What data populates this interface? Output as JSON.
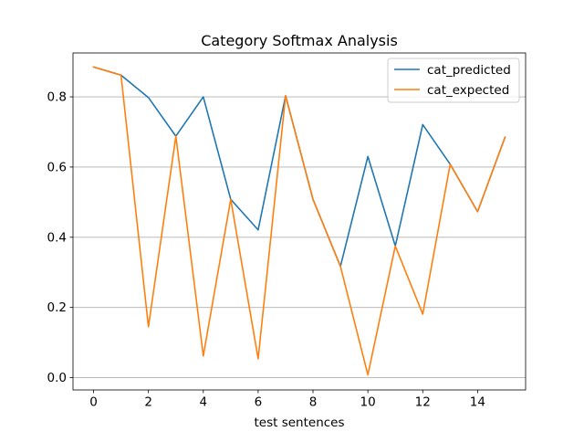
{
  "chart_data": {
    "type": "line",
    "title": "Category Softmax Analysis",
    "xlabel": "test sentences",
    "ylabel": "",
    "xlim": [
      -0.75,
      15.75
    ],
    "ylim": [
      -0.035,
      0.925
    ],
    "xticks": [
      0,
      2,
      4,
      6,
      8,
      10,
      12,
      14
    ],
    "yticks": [
      0.0,
      0.2,
      0.4,
      0.6,
      0.8
    ],
    "xtick_labels": [
      "0",
      "2",
      "4",
      "6",
      "8",
      "10",
      "12",
      "14"
    ],
    "ytick_labels": [
      "0.0",
      "0.2",
      "0.4",
      "0.6",
      "0.8"
    ],
    "grid": "horizontal",
    "legend_position": "top-right",
    "x": [
      0,
      1,
      2,
      3,
      4,
      5,
      6,
      7,
      8,
      9,
      10,
      11,
      12,
      13,
      14,
      15
    ],
    "series": [
      {
        "name": "cat_predicted",
        "color": "#1f77b4",
        "values": [
          0.885,
          0.862,
          0.798,
          0.688,
          0.8,
          0.508,
          0.421,
          0.803,
          0.508,
          0.317,
          0.63,
          0.375,
          0.721,
          0.608,
          0.473,
          0.685
        ]
      },
      {
        "name": "cat_expected",
        "color": "#ff7f0e",
        "values": [
          0.885,
          0.862,
          0.145,
          0.688,
          0.062,
          0.508,
          0.054,
          0.803,
          0.508,
          0.317,
          0.008,
          0.375,
          0.181,
          0.608,
          0.473,
          0.685
        ]
      }
    ]
  }
}
